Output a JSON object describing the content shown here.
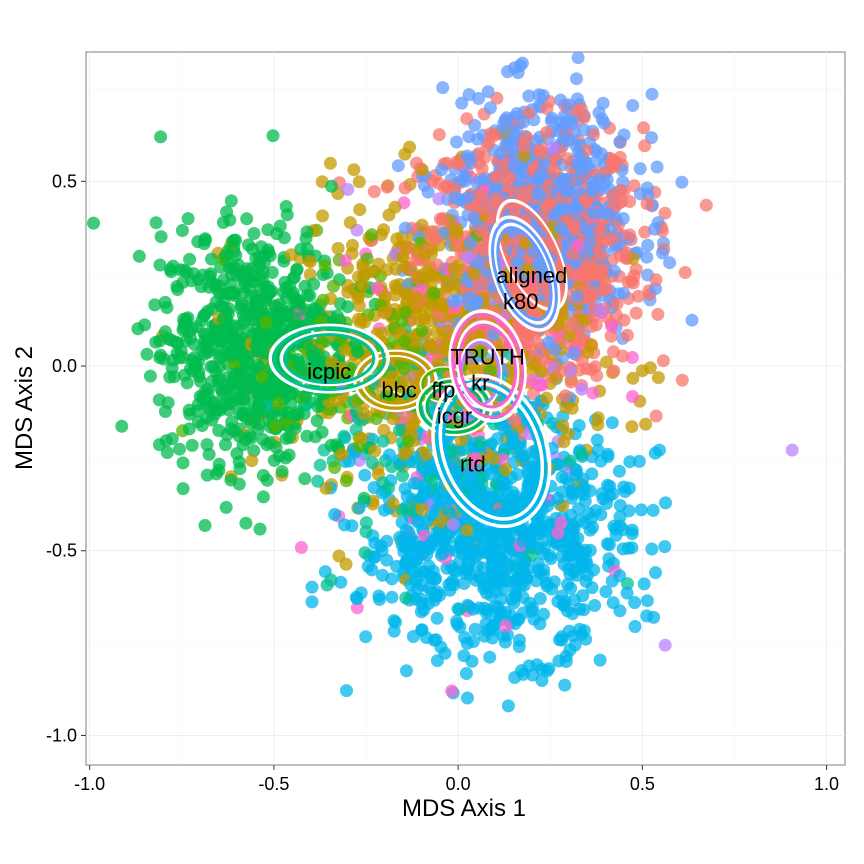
{
  "chart_data": {
    "type": "scatter",
    "title": "",
    "xlabel": "MDS Axis 1",
    "ylabel": "MDS Axis 2",
    "xlim": [
      -1.01,
      1.05
    ],
    "ylim": [
      -1.08,
      0.85
    ],
    "x_ticks": [
      -1.0,
      -0.5,
      0.0,
      0.5,
      1.0
    ],
    "x_tick_labels": [
      "-1.0",
      "-0.5",
      "0.0",
      "0.5",
      "1.0"
    ],
    "y_ticks": [
      -1.0,
      -0.5,
      0.0,
      0.5
    ],
    "y_tick_labels": [
      "-1.0",
      "-0.5",
      "0.0",
      "0.5"
    ],
    "grid": true,
    "legend": "none",
    "point_opacity": 0.75,
    "series": [
      {
        "name": "aligned",
        "color": "#F8766D",
        "center": [
          0.2,
          0.3
        ],
        "sd": [
          0.15,
          0.17
        ],
        "count": 900,
        "ellipses": [
          {
            "center": [
              0.2,
              0.3
            ],
            "radii": [
              0.07,
              0.16
            ],
            "angle_deg": 25
          }
        ],
        "label_pos": [
          0.2,
          0.24
        ]
      },
      {
        "name": "bbc",
        "color": "#C49A00",
        "center": [
          -0.05,
          0.05
        ],
        "sd": [
          0.2,
          0.2
        ],
        "count": 650,
        "ellipses": [
          {
            "center": [
              -0.17,
              -0.04
            ],
            "radii": [
              0.09,
              0.065
            ],
            "angle_deg": 0
          },
          {
            "center": [
              -0.17,
              -0.04
            ],
            "radii": [
              0.11,
              0.08
            ],
            "angle_deg": 0
          }
        ],
        "label_pos": [
          -0.16,
          -0.07
        ]
      },
      {
        "name": "ffp",
        "color": "#53B400",
        "center": [
          -0.25,
          0.05
        ],
        "sd": [
          0.15,
          0.15
        ],
        "count": 120,
        "ellipses": [
          {
            "center": [
              -0.04,
              -0.05
            ],
            "radii": [
              0.06,
              0.045
            ],
            "angle_deg": 0
          }
        ],
        "label_pos": [
          -0.04,
          -0.07
        ]
      },
      {
        "name": "icpic",
        "color": "#00C094",
        "center": [
          -0.05,
          -0.2
        ],
        "sd": [
          0.18,
          0.18
        ],
        "count": 120,
        "ellipses": [
          {
            "center": [
              -0.35,
              0.02
            ],
            "radii": [
              0.16,
              0.09
            ],
            "angle_deg": 0
          },
          {
            "center": [
              -0.35,
              0.02
            ],
            "radii": [
              0.13,
              0.07
            ],
            "angle_deg": 0
          }
        ],
        "label_pos": [
          -0.35,
          -0.02
        ]
      },
      {
        "name": "icgr",
        "color": "#00BB4E",
        "center": [
          -0.55,
          0.05
        ],
        "sd": [
          0.13,
          0.16
        ],
        "count": 750,
        "ellipses": [
          {
            "center": [
              -0.01,
              -0.11
            ],
            "radii": [
              0.08,
              0.06
            ],
            "angle_deg": 0
          },
          {
            "center": [
              -0.01,
              -0.11
            ],
            "radii": [
              0.1,
              0.075
            ],
            "angle_deg": 0
          }
        ],
        "label_pos": [
          -0.01,
          -0.14
        ]
      },
      {
        "name": "k80",
        "color": "#619CFF",
        "center": [
          0.22,
          0.4
        ],
        "sd": [
          0.13,
          0.16
        ],
        "count": 700,
        "ellipses": [
          {
            "center": [
              0.18,
              0.25
            ],
            "radii": [
              0.08,
              0.16
            ],
            "angle_deg": 20
          },
          {
            "center": [
              0.18,
              0.25
            ],
            "radii": [
              0.065,
              0.14
            ],
            "angle_deg": 20
          }
        ],
        "label_pos": [
          0.17,
          0.17
        ]
      },
      {
        "name": "kr",
        "color": "#B983FF",
        "center": [
          0.05,
          0.0
        ],
        "sd": [
          0.2,
          0.25
        ],
        "count": 60,
        "ellipses": [
          {
            "center": [
              0.06,
              -0.02
            ],
            "radii": [
              0.055,
              0.09
            ],
            "angle_deg": 0
          }
        ],
        "label_pos": [
          0.06,
          -0.05
        ]
      },
      {
        "name": "rtd",
        "color": "#00B6EB",
        "center": [
          0.1,
          -0.45
        ],
        "sd": [
          0.18,
          0.16
        ],
        "count": 900,
        "ellipses": [
          {
            "center": [
              0.09,
              -0.23
            ],
            "radii": [
              0.15,
              0.21
            ],
            "angle_deg": 20
          },
          {
            "center": [
              0.09,
              -0.23
            ],
            "radii": [
              0.13,
              0.19
            ],
            "angle_deg": 20
          }
        ],
        "label_pos": [
          0.04,
          -0.27
        ]
      },
      {
        "name": "TRUTH",
        "color": "#FD61D1",
        "center": [
          0.05,
          -0.05
        ],
        "sd": [
          0.2,
          0.25
        ],
        "count": 110,
        "ellipses": [
          {
            "center": [
              0.08,
              0.0
            ],
            "radii": [
              0.08,
              0.12
            ],
            "angle_deg": 10
          },
          {
            "center": [
              0.08,
              0.0
            ],
            "radii": [
              0.1,
              0.15
            ],
            "angle_deg": 10
          }
        ],
        "label_pos": [
          0.08,
          0.02
        ]
      },
      {
        "name": "",
        "color": "#F8766D",
        "center": [
          0.1,
          0.0
        ],
        "sd": [
          0.25,
          0.25
        ],
        "count": 0,
        "ellipses": [],
        "label_pos": null
      }
    ]
  }
}
